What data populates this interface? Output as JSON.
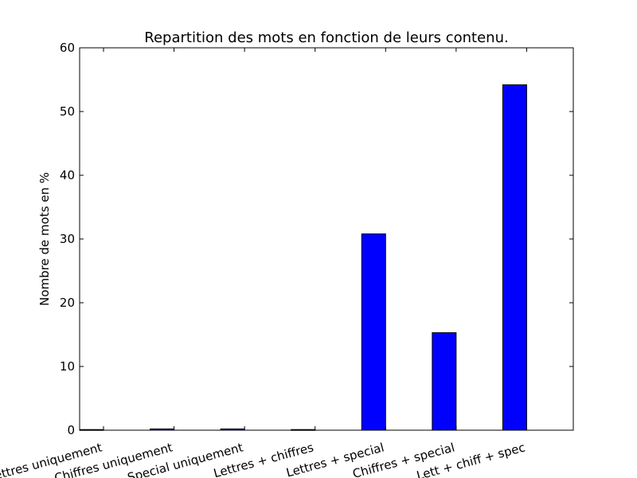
{
  "chart_data": {
    "type": "bar",
    "title": "Repartition des mots en fonction de leurs contenu.",
    "xlabel": "",
    "ylabel": "Nombre de mots en %",
    "ylim": [
      0,
      60
    ],
    "yticks": [
      0,
      10,
      20,
      30,
      40,
      50,
      60
    ],
    "categories": [
      "Lettres uniquement",
      "Chiffres uniquement",
      "Special uniquement",
      "Lettres + chiffres",
      "Lettres + special",
      "Chiffres + special",
      "Lett + chiff + spec"
    ],
    "values": [
      0.1,
      0.2,
      0.2,
      0.1,
      30.8,
      15.3,
      54.2
    ],
    "bar_color": "#0000ff",
    "grid": false,
    "legend": "none"
  }
}
